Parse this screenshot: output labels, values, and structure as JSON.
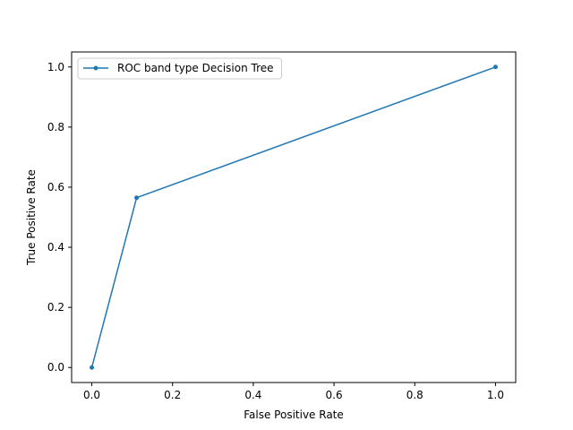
{
  "chart_data": {
    "type": "line",
    "title": "",
    "xlabel": "False Positive Rate",
    "ylabel": "True Positive Rate",
    "xlim": [
      -0.05,
      1.05
    ],
    "ylim": [
      -0.05,
      1.05
    ],
    "xticks": [
      0.0,
      0.2,
      0.4,
      0.6,
      0.8,
      1.0
    ],
    "yticks": [
      0.0,
      0.2,
      0.4,
      0.6,
      0.8,
      1.0
    ],
    "xtick_labels": [
      "0.0",
      "0.2",
      "0.4",
      "0.6",
      "0.8",
      "1.0"
    ],
    "ytick_labels": [
      "0.0",
      "0.2",
      "0.4",
      "0.6",
      "0.8",
      "1.0"
    ],
    "grid": false,
    "legend_position": "upper-left",
    "series": [
      {
        "name": "ROC band type Decision Tree",
        "color": "#1f77b4",
        "marker": "point",
        "x": [
          0.0,
          0.111,
          1.0
        ],
        "y": [
          0.0,
          0.565,
          1.0
        ]
      }
    ]
  }
}
